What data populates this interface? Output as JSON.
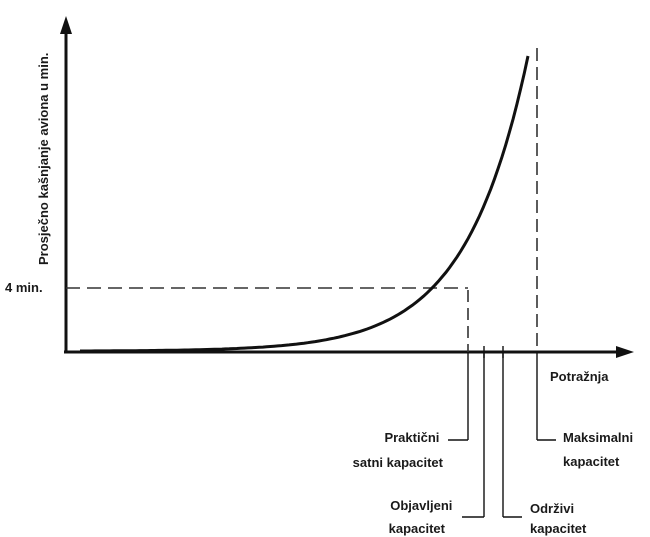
{
  "chart_data": {
    "type": "line",
    "title": "",
    "xlabel": "Potražnja",
    "ylabel": "Prosječno kašnjanje aviona u min.",
    "grid": false,
    "series": [
      {
        "name": "",
        "curve": "exponential",
        "color": "#111111"
      }
    ],
    "y_marker": {
      "label": "4 min.",
      "value": 4
    },
    "capacity_markers": [
      {
        "label_lines": [
          "Praktični",
          "satni kapacitet"
        ],
        "order": 1,
        "line_style": "dashed"
      },
      {
        "label_lines": [
          "Objavljeni",
          "kapacitet"
        ],
        "order": 2,
        "line_style": "solid"
      },
      {
        "label_lines": [
          "Održivi",
          "kapacitet"
        ],
        "order": 3,
        "line_style": "solid"
      },
      {
        "label_lines": [
          "Maksimalni",
          "kapacitet"
        ],
        "order": 4,
        "line_style": "dashed"
      }
    ]
  }
}
